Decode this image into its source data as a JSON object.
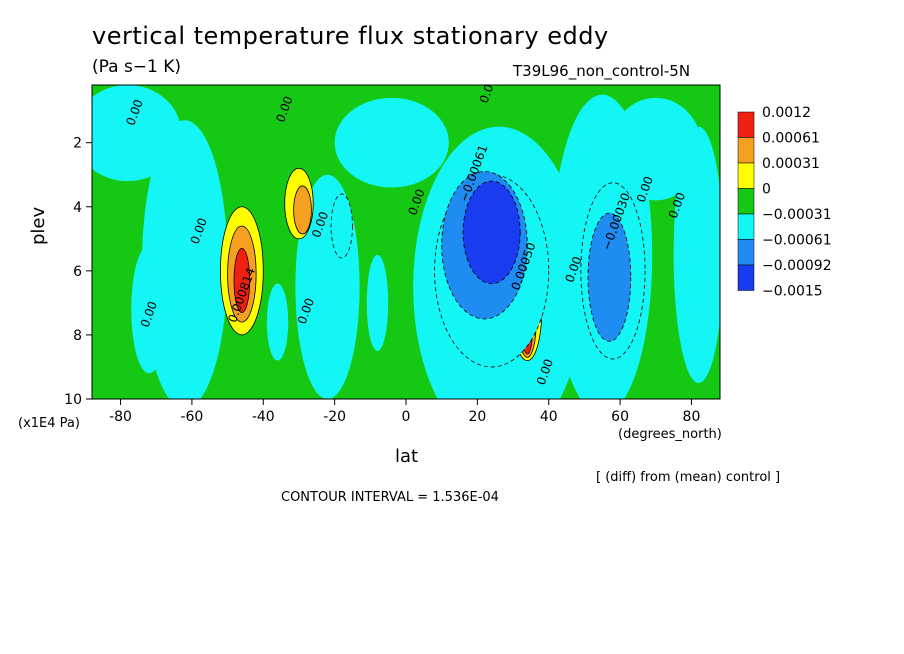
{
  "header": {
    "title": "vertical temperature flux stationary eddy",
    "units": "(Pa s−1 K)",
    "run": "T39L96_non_control-5N"
  },
  "footer": {
    "y_units": "(x1E4 Pa)",
    "x_units": "(degrees_north)",
    "diff_note": "[ (diff) from (mean) control ]",
    "contour_interval": "CONTOUR INTERVAL = 1.536E-04"
  },
  "chart_data": {
    "type": "heatmap",
    "title": "vertical temperature flux stationary eddy",
    "xlabel": "lat",
    "ylabel": "plev",
    "xlim": [
      -88,
      88
    ],
    "ylim": [
      10,
      0.2
    ],
    "x_ticks": [
      -80,
      -60,
      -40,
      -20,
      0,
      20,
      40,
      60,
      80
    ],
    "y_ticks": [
      2,
      4,
      6,
      8,
      10
    ],
    "colorbar": {
      "levels": [
        "0.0012",
        "0.00061",
        "0.00031",
        "0",
        "−0.00031",
        "−0.00061",
        "−0.00092",
        "−0.0015"
      ],
      "colors": [
        "#f02010",
        "#f5a020",
        "#ffff00",
        "#14c814",
        "#14f5f5",
        "#1e8cf0",
        "#1a3cf0"
      ]
    },
    "contour_labels": [
      {
        "text": "0.00",
        "lat": -75,
        "p": 1.1
      },
      {
        "text": "0.00",
        "lat": -33,
        "p": 1.0
      },
      {
        "text": "0.00",
        "lat": 24,
        "p": 0.4
      },
      {
        "text": "0.00",
        "lat": -57,
        "p": 4.8
      },
      {
        "text": "0.00",
        "lat": -71,
        "p": 7.4
      },
      {
        "text": "0.00",
        "lat": -27,
        "p": 7.3
      },
      {
        "text": "0.00",
        "lat": -23,
        "p": 4.6
      },
      {
        "text": "0.00",
        "lat": 4,
        "p": 3.9
      },
      {
        "text": "0.00",
        "lat": 68,
        "p": 3.5
      },
      {
        "text": "0.00",
        "lat": 77,
        "p": 4.0
      },
      {
        "text": "0.00",
        "lat": 48,
        "p": 6.0
      },
      {
        "text": "0.00",
        "lat": 40,
        "p": 9.2
      },
      {
        "text": "−0.00061",
        "lat": 20,
        "p": 3.0
      },
      {
        "text": "0.000814",
        "lat": -45,
        "p": 6.8
      },
      {
        "text": "0.00050",
        "lat": 34,
        "p": 5.9
      },
      {
        "text": "−0.00030",
        "lat": 60,
        "p": 4.5
      }
    ],
    "features": [
      {
        "lat": -46,
        "p": 6.0,
        "w": 6,
        "h": 4.0,
        "level": 3,
        "value": 0.00031
      },
      {
        "lat": -46,
        "p": 6.1,
        "w": 4,
        "h": 3.0,
        "level": 2,
        "value": 0.00061
      },
      {
        "lat": -46,
        "p": 6.3,
        "w": 2.2,
        "h": 2.0,
        "level": 1,
        "value": 0.0012
      },
      {
        "lat": -30,
        "p": 3.9,
        "w": 4,
        "h": 2.2,
        "level": 3,
        "value": 0.00031
      },
      {
        "lat": -29,
        "p": 4.1,
        "w": 2.5,
        "h": 1.5,
        "level": 2,
        "value": 0.00061
      },
      {
        "lat": 34,
        "p": 7.3,
        "w": 4,
        "h": 3.0,
        "level": 3,
        "value": 0.00031
      },
      {
        "lat": 34,
        "p": 7.6,
        "w": 2.5,
        "h": 2.2,
        "level": 2,
        "value": 0.00061
      },
      {
        "lat": 34,
        "p": 7.9,
        "w": 1.4,
        "h": 1.4,
        "level": 1,
        "value": 0.0012
      },
      {
        "lat": 24,
        "p": 6.0,
        "w": 16,
        "h": 6.0,
        "level": 5,
        "value": -0.00031
      },
      {
        "lat": 22,
        "p": 5.2,
        "w": 12,
        "h": 4.6,
        "level": 6,
        "value": -0.00061
      },
      {
        "lat": 24,
        "p": 4.8,
        "w": 8,
        "h": 3.2,
        "level": 7,
        "value": -0.00092
      },
      {
        "lat": 58,
        "p": 6.0,
        "w": 9,
        "h": 5.5,
        "level": 5,
        "value": -0.00031
      },
      {
        "lat": 57,
        "p": 6.2,
        "w": 6,
        "h": 4.0,
        "level": 6,
        "value": -0.00061
      },
      {
        "lat": -18,
        "p": 4.6,
        "w": 3,
        "h": 2.0,
        "level": 5,
        "value": -0.00031
      }
    ]
  }
}
